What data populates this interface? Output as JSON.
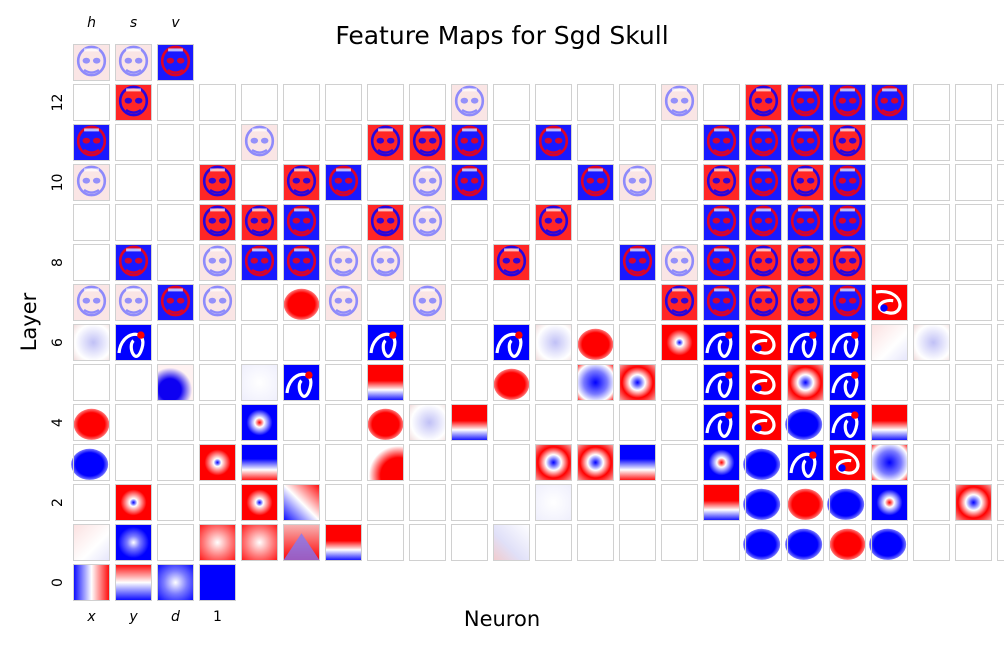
{
  "chart_data": {
    "type": "heatmap",
    "title": "Feature Maps for Sgd Skull",
    "xlabel": "Neuron",
    "ylabel": "Layer",
    "y_ticks": [
      "0",
      "2",
      "4",
      "6",
      "8",
      "10",
      "12"
    ],
    "output_channels": [
      "h",
      "s",
      "v"
    ],
    "input_channels": [
      "x",
      "y",
      "d",
      "1"
    ],
    "colormap": [
      "#0000ff",
      "#ffffff",
      "#ff0000"
    ],
    "empty_cell_border": "#d0d0d0",
    "layers": [
      {
        "layer": 0,
        "cells": [
          "grad-x",
          "grad-y",
          "radial",
          "solid-blue"
        ]
      },
      {
        "layer": 1,
        "cells": [
          "faint-pink",
          "blue-dot",
          "",
          "radial-red",
          "radial-red",
          "arch",
          "band-red",
          "",
          "",
          "",
          "faint-diag",
          "",
          "",
          "",
          "",
          "",
          "blob-blue",
          "blob-blue",
          "blob-red",
          "blob-blue",
          "",
          "",
          ""
        ]
      },
      {
        "layer": 2,
        "cells": [
          "",
          "ring-red",
          "",
          "",
          "ring-red",
          "grad-blue",
          "",
          "",
          "",
          "",
          "",
          "faint",
          "",
          "",
          "",
          "band-red",
          "blob-blue",
          "blob-red",
          "blob-blue",
          "ring-blue",
          "",
          "dot-red",
          ""
        ]
      },
      {
        "layer": 3,
        "cells": [
          "blob-blue",
          "",
          "",
          "ring-red",
          "band-blue",
          "",
          "",
          "corner-red",
          "",
          "",
          "",
          "dot-red",
          "dot-red",
          "band-blue",
          "",
          "ring-blue",
          "blob-blue",
          "swirl-blue",
          "swirl-red",
          "dot-blue",
          "",
          "",
          ""
        ]
      },
      {
        "layer": 4,
        "cells": [
          "blob-red",
          "",
          "",
          "",
          "ring-blue",
          "",
          "",
          "blob-red",
          "faint-blue",
          "band-red",
          "",
          "",
          "",
          "",
          "",
          "swirl-blue",
          "swirl-red",
          "blob-blue",
          "swirl-blue",
          "band-red",
          "",
          "",
          ""
        ]
      },
      {
        "layer": 5,
        "cells": [
          "",
          "",
          "corner-blue",
          "",
          "faint",
          "swirl-blue",
          "",
          "band-red",
          "",
          "",
          "blob-red",
          "",
          "dot-blue",
          "dot-red",
          "",
          "swirl-blue",
          "swirl-red",
          "dot-red",
          "swirl-blue",
          "",
          "",
          "",
          ""
        ]
      },
      {
        "layer": 6,
        "cells": [
          "faint-blue",
          "swirl-blue",
          "",
          "",
          "",
          "",
          "",
          "swirl-blue",
          "",
          "",
          "swirl-blue",
          "faint-blue",
          "blob-red",
          "",
          "ring-red",
          "swirl-blue",
          "swirl-red",
          "swirl-blue",
          "swirl-blue",
          "faint-pink",
          "faint-blue",
          "",
          ""
        ]
      },
      {
        "layer": 7,
        "cells": [
          "face-faint",
          "face-faint",
          "face-blue",
          "face-faint",
          "",
          "blob-red",
          "face-faint",
          "",
          "face-faint",
          "",
          "",
          "",
          "",
          "",
          "face-red",
          "face-blue",
          "face-red",
          "face-red",
          "face-blue",
          "swirl-red",
          "",
          "",
          ""
        ]
      },
      {
        "layer": 8,
        "cells": [
          "",
          "face-blue",
          "",
          "face-faint",
          "face-blue",
          "face-blue",
          "face-faint",
          "face-faint",
          "",
          "",
          "face-red",
          "",
          "",
          "face-blue",
          "face-faint",
          "face-blue",
          "face-red",
          "face-red",
          "face-red",
          "",
          "",
          "",
          ""
        ]
      },
      {
        "layer": 9,
        "cells": [
          "",
          "",
          "",
          "face-red",
          "face-red",
          "face-blue",
          "",
          "face-red",
          "face-faint",
          "",
          "",
          "face-red",
          "",
          "",
          "",
          "face-blue",
          "face-blue",
          "face-blue",
          "face-blue",
          "",
          "",
          "",
          ""
        ]
      },
      {
        "layer": 10,
        "cells": [
          "face-faint",
          "",
          "",
          "face-red",
          "",
          "face-red",
          "face-blue",
          "",
          "face-faint",
          "face-blue",
          "",
          "",
          "face-blue",
          "face-faint",
          "",
          "face-red",
          "face-blue",
          "face-red",
          "face-blue",
          "",
          "",
          "",
          ""
        ]
      },
      {
        "layer": 11,
        "cells": [
          "face-blue",
          "",
          "",
          "",
          "face-faint",
          "",
          "",
          "face-red",
          "face-red",
          "face-blue",
          "",
          "face-blue",
          "",
          "",
          "",
          "face-blue",
          "face-blue",
          "face-blue",
          "face-red",
          "",
          "",
          "",
          ""
        ]
      },
      {
        "layer": 12,
        "cells": [
          "",
          "face-red",
          "",
          "",
          "",
          "",
          "",
          "",
          "",
          "face-faint",
          "",
          "",
          "",
          "",
          "face-faint",
          "",
          "face-red",
          "face-blue",
          "face-blue",
          "face-blue",
          "",
          "",
          ""
        ]
      },
      {
        "layer": 13,
        "cells": [
          "face-faint",
          "face-faint",
          "face-blue"
        ]
      }
    ]
  }
}
